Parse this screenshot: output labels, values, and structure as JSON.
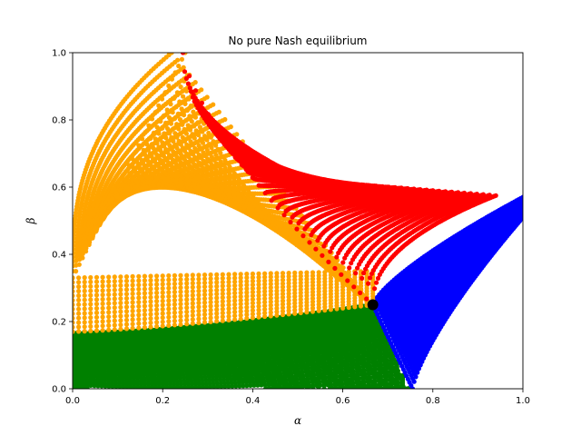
{
  "chart_data": {
    "type": "scatter",
    "title": "No pure Nash equilibrium",
    "xlabel": "α",
    "ylabel": "β",
    "xlim": [
      0,
      1
    ],
    "ylim": [
      0,
      1
    ],
    "grid": false,
    "xticks": [
      "0.0",
      "0.2",
      "0.4",
      "0.6",
      "0.8",
      "1.0"
    ],
    "yticks": [
      "0.0",
      "0.2",
      "0.4",
      "0.6",
      "0.8",
      "1.0"
    ],
    "equilibrium_point": {
      "x": 0.6667,
      "y": 0.25,
      "color": "#000000"
    },
    "regions": [
      {
        "color": "#ff0000",
        "description_points": [
          {
            "x": 0.24,
            "y": 1.0
          },
          {
            "x": 0.94,
            "y": 0.575
          },
          {
            "x": 0.6667,
            "y": 0.25
          }
        ]
      },
      {
        "color": "#ffa500",
        "description_points": [
          {
            "x": 0.0,
            "y": 0.33
          },
          {
            "x": 0.22,
            "y": 1.0
          },
          {
            "x": 0.6667,
            "y": 0.25
          },
          {
            "x": 0.0,
            "y": 0.17
          }
        ]
      },
      {
        "color": "#008000",
        "description_points": [
          {
            "x": 0.0,
            "y": 0.165
          },
          {
            "x": 0.6667,
            "y": 0.25
          },
          {
            "x": 0.745,
            "y": 0.0
          },
          {
            "x": 0.49,
            "y": 0.0
          }
        ]
      },
      {
        "color": "#0000ff",
        "description_points": [
          {
            "x": 0.6667,
            "y": 0.25
          },
          {
            "x": 1.0,
            "y": 0.57
          },
          {
            "x": 1.0,
            "y": 0.5
          },
          {
            "x": 0.75,
            "y": 0.0
          }
        ]
      }
    ]
  }
}
